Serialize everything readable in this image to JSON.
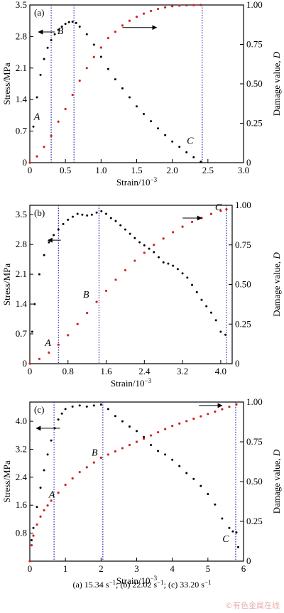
{
  "caption": {
    "parts": [
      {
        "text": "(a) 15.34 s"
      },
      {
        "sup": "−1"
      },
      {
        "text": "; (b) 22.02 s"
      },
      {
        "sup": "−1"
      },
      {
        "text": "; (c) 33.20 s"
      },
      {
        "sup": "−1"
      }
    ]
  },
  "watermark": "©有色金属在线",
  "colors": {
    "stress": "#000000",
    "damage": "#d42020",
    "guide": "#2b2bb0",
    "axis": "#000000"
  },
  "chart_data": [
    {
      "type": "scatter",
      "panel_label": "(a)",
      "xlabel": "Strain/10",
      "xlabel_sup": "−3",
      "ylabel": "Stress/MPa",
      "y2label": "Damage value, ",
      "y2label_var": "D",
      "xlim": [
        0,
        3.0
      ],
      "ylim": [
        0,
        3.5
      ],
      "y2lim": [
        0,
        1.0
      ],
      "xticks": [
        "0",
        "0.5",
        "1.0",
        "1.5",
        "2.0",
        "2.5",
        "3.0"
      ],
      "xtick_values": [
        0,
        0.5,
        1.0,
        1.5,
        2.0,
        2.5,
        3.0
      ],
      "yticks": [
        "0",
        "0.7",
        "1.4",
        "2.1",
        "2.8",
        "3.5"
      ],
      "ytick_values": [
        0,
        0.7,
        1.4,
        2.1,
        2.8,
        3.5
      ],
      "y2ticks": [
        "0",
        "0.25",
        "0.50",
        "0.75",
        "1.00"
      ],
      "y2tick_values": [
        0,
        0.25,
        0.5,
        0.75,
        1.0
      ],
      "guides_x": [
        0.3,
        0.62,
        2.42
      ],
      "stress": {
        "x": [
          0,
          0.05,
          0.1,
          0.15,
          0.2,
          0.25,
          0.3,
          0.35,
          0.4,
          0.45,
          0.5,
          0.55,
          0.6,
          0.65,
          0.7,
          0.8,
          0.9,
          1.0,
          1.1,
          1.2,
          1.3,
          1.4,
          1.5,
          1.6,
          1.7,
          1.8,
          1.9,
          2.0,
          2.1,
          2.2,
          2.3,
          2.4
        ],
        "y": [
          0,
          0.8,
          1.45,
          1.95,
          2.3,
          2.55,
          2.72,
          2.85,
          2.95,
          3.02,
          3.08,
          3.12,
          3.13,
          3.1,
          3.02,
          2.85,
          2.62,
          2.35,
          2.08,
          1.85,
          1.65,
          1.45,
          1.25,
          1.08,
          0.92,
          0.76,
          0.61,
          0.47,
          0.35,
          0.23,
          0.12,
          0.02
        ]
      },
      "damage": {
        "x": [
          0,
          0.1,
          0.2,
          0.3,
          0.4,
          0.5,
          0.6,
          0.7,
          0.8,
          0.9,
          1.0,
          1.1,
          1.2,
          1.3,
          1.4,
          1.5,
          1.6,
          1.7,
          1.8,
          1.9,
          2.0,
          2.1,
          2.2,
          2.3,
          2.4
        ],
        "y": [
          0,
          0.04,
          0.1,
          0.17,
          0.26,
          0.34,
          0.43,
          0.52,
          0.6,
          0.67,
          0.73,
          0.79,
          0.83,
          0.87,
          0.9,
          0.925,
          0.945,
          0.962,
          0.975,
          0.985,
          0.992,
          0.996,
          0.998,
          0.999,
          1.0
        ]
      },
      "point_labels": [
        {
          "text": "A",
          "x": 0.1,
          "y": 0.95
        },
        {
          "text": "B",
          "x": 0.43,
          "y": 2.85
        },
        {
          "text": "C",
          "x": 2.25,
          "y": 0.42
        }
      ],
      "arrows": [
        {
          "from": [
            0.35,
            2.9
          ],
          "to": [
            0.12,
            2.9
          ]
        },
        {
          "from": [
            1.3,
            3.0
          ],
          "to": [
            1.78,
            3.0
          ]
        }
      ]
    },
    {
      "type": "scatter",
      "panel_label": "(b)",
      "xlabel": "Strain/10",
      "xlabel_sup": "−3",
      "ylabel": "Stress/MPa",
      "y2label": "Damage value, ",
      "y2label_var": "D",
      "xlim": [
        0,
        4.24
      ],
      "ylim": [
        0,
        3.72
      ],
      "y2lim": [
        0,
        1.0
      ],
      "xticks": [
        "0",
        "0.8",
        "1.6",
        "2.4",
        "3.2",
        "4.0"
      ],
      "xtick_values": [
        0,
        0.8,
        1.6,
        2.4,
        3.2,
        4.0
      ],
      "yticks": [
        "0",
        "0.7",
        "1.4",
        "2.1",
        "2.8",
        "3.5"
      ],
      "ytick_values": [
        0,
        0.7,
        1.4,
        2.1,
        2.8,
        3.5
      ],
      "y2ticks": [
        "0",
        "0.25",
        "0.50",
        "0.75",
        "1.00"
      ],
      "y2tick_values": [
        0,
        0.25,
        0.5,
        0.75,
        1.0
      ],
      "guides_x": [
        0.6,
        1.45,
        4.12
      ],
      "stress": {
        "x": [
          0,
          0.05,
          0.1,
          0.2,
          0.3,
          0.4,
          0.5,
          0.6,
          0.7,
          0.8,
          0.9,
          1.0,
          1.1,
          1.2,
          1.3,
          1.4,
          1.5,
          1.6,
          1.7,
          1.8,
          1.9,
          2.0,
          2.1,
          2.2,
          2.3,
          2.4,
          2.5,
          2.6,
          2.7,
          2.8,
          2.9,
          3.0,
          3.1,
          3.2,
          3.3,
          3.4,
          3.5,
          3.6,
          3.7,
          3.8,
          3.9,
          4.0,
          4.1
        ],
        "y": [
          0,
          0.75,
          1.4,
          2.1,
          2.55,
          2.85,
          3.02,
          3.15,
          3.28,
          3.38,
          3.45,
          3.52,
          3.5,
          3.48,
          3.5,
          3.55,
          3.58,
          3.52,
          3.42,
          3.35,
          3.25,
          3.15,
          3.05,
          2.95,
          2.85,
          2.78,
          2.7,
          2.62,
          2.5,
          2.38,
          2.35,
          2.3,
          2.22,
          2.12,
          2.02,
          1.85,
          1.68,
          1.5,
          1.35,
          1.2,
          1.02,
          0.75,
          0.68
        ]
      },
      "damage": {
        "x": [
          0,
          0.2,
          0.4,
          0.6,
          0.8,
          1.0,
          1.2,
          1.4,
          1.6,
          1.8,
          2.0,
          2.2,
          2.4,
          2.6,
          2.8,
          3.0,
          3.2,
          3.4,
          3.6,
          3.8,
          4.0,
          4.12
        ],
        "y": [
          0,
          0.03,
          0.07,
          0.12,
          0.18,
          0.25,
          0.32,
          0.39,
          0.46,
          0.53,
          0.59,
          0.65,
          0.7,
          0.75,
          0.79,
          0.83,
          0.865,
          0.895,
          0.92,
          0.945,
          0.965,
          0.975
        ]
      },
      "point_labels": [
        {
          "text": "A",
          "x": 0.38,
          "y": 0.42
        },
        {
          "text": "B",
          "x": 1.18,
          "y": 1.55
        },
        {
          "text": "C",
          "x": 3.95,
          "y": 3.6
        }
      ],
      "arrows": [
        {
          "from": [
            0.65,
            2.9
          ],
          "to": [
            0.38,
            2.9
          ]
        },
        {
          "from": [
            3.2,
            3.42
          ],
          "to": [
            3.6,
            3.42
          ]
        }
      ]
    },
    {
      "type": "scatter",
      "panel_label": "(c)",
      "xlabel": "Strain/10",
      "xlabel_sup": "−3",
      "ylabel": "Stress/MPa",
      "y2label": "Damage value, ",
      "y2label_var": "D",
      "xlim": [
        0,
        6.0
      ],
      "ylim": [
        0,
        4.55
      ],
      "y2lim": [
        0,
        1.0
      ],
      "xticks": [
        "0",
        "1",
        "2",
        "3",
        "4",
        "5",
        "6"
      ],
      "xtick_values": [
        0,
        1,
        2,
        3,
        4,
        5,
        6
      ],
      "yticks": [
        "0.8",
        "1.6",
        "2.4",
        "3.2",
        "4.0"
      ],
      "ytick_values": [
        0.8,
        1.6,
        2.4,
        3.2,
        4.0
      ],
      "y2ticks": [
        "0",
        "0.25",
        "0.50",
        "0.75",
        "1.00"
      ],
      "y2tick_values": [
        0,
        0.25,
        0.5,
        0.75,
        1.0
      ],
      "guides_x": [
        0.68,
        2.05,
        5.78
      ],
      "stress": {
        "x": [
          0,
          0.05,
          0.1,
          0.2,
          0.3,
          0.4,
          0.5,
          0.6,
          0.7,
          0.8,
          0.9,
          1.0,
          1.2,
          1.4,
          1.6,
          1.8,
          2.0,
          2.2,
          2.4,
          2.6,
          2.8,
          3.0,
          3.2,
          3.4,
          3.6,
          3.8,
          4.0,
          4.2,
          4.4,
          4.6,
          4.8,
          5.0,
          5.2,
          5.4,
          5.6,
          5.7,
          5.8,
          5.85
        ],
        "y": [
          0,
          0.6,
          0.95,
          1.55,
          2.1,
          2.6,
          3.05,
          3.45,
          3.8,
          4.05,
          4.22,
          4.35,
          4.42,
          4.45,
          4.42,
          4.45,
          4.48,
          4.35,
          4.15,
          4.0,
          3.85,
          3.72,
          3.55,
          3.32,
          3.15,
          3.05,
          2.9,
          2.72,
          2.52,
          2.35,
          2.15,
          1.92,
          1.62,
          1.22,
          0.95,
          0.85,
          0.82,
          0.4
        ]
      },
      "damage": {
        "x": [
          0,
          0.05,
          0.1,
          0.2,
          0.3,
          0.4,
          0.5,
          0.6,
          0.8,
          1.0,
          1.2,
          1.4,
          1.6,
          1.8,
          2.0,
          2.2,
          2.4,
          2.6,
          2.8,
          3.0,
          3.2,
          3.4,
          3.6,
          3.8,
          4.0,
          4.2,
          4.4,
          4.6,
          4.8,
          5.0,
          5.2,
          5.4,
          5.6,
          5.8
        ],
        "y": [
          0,
          0.1,
          0.16,
          0.23,
          0.28,
          0.32,
          0.35,
          0.38,
          0.43,
          0.48,
          0.52,
          0.56,
          0.59,
          0.62,
          0.65,
          0.67,
          0.69,
          0.71,
          0.73,
          0.75,
          0.77,
          0.79,
          0.81,
          0.83,
          0.85,
          0.865,
          0.88,
          0.895,
          0.91,
          0.925,
          0.94,
          0.955,
          0.97,
          0.985
        ]
      },
      "point_labels": [
        {
          "text": "A",
          "x": 0.62,
          "y": 1.82
        },
        {
          "text": "B",
          "x": 1.82,
          "y": 3.02
        },
        {
          "text": "C",
          "x": 5.5,
          "y": 0.55
        }
      ],
      "arrows": [
        {
          "from": [
            0.85,
            3.8
          ],
          "to": [
            0.18,
            3.8
          ]
        },
        {
          "from": [
            4.75,
            4.45
          ],
          "to": [
            5.4,
            4.45
          ]
        }
      ]
    }
  ]
}
